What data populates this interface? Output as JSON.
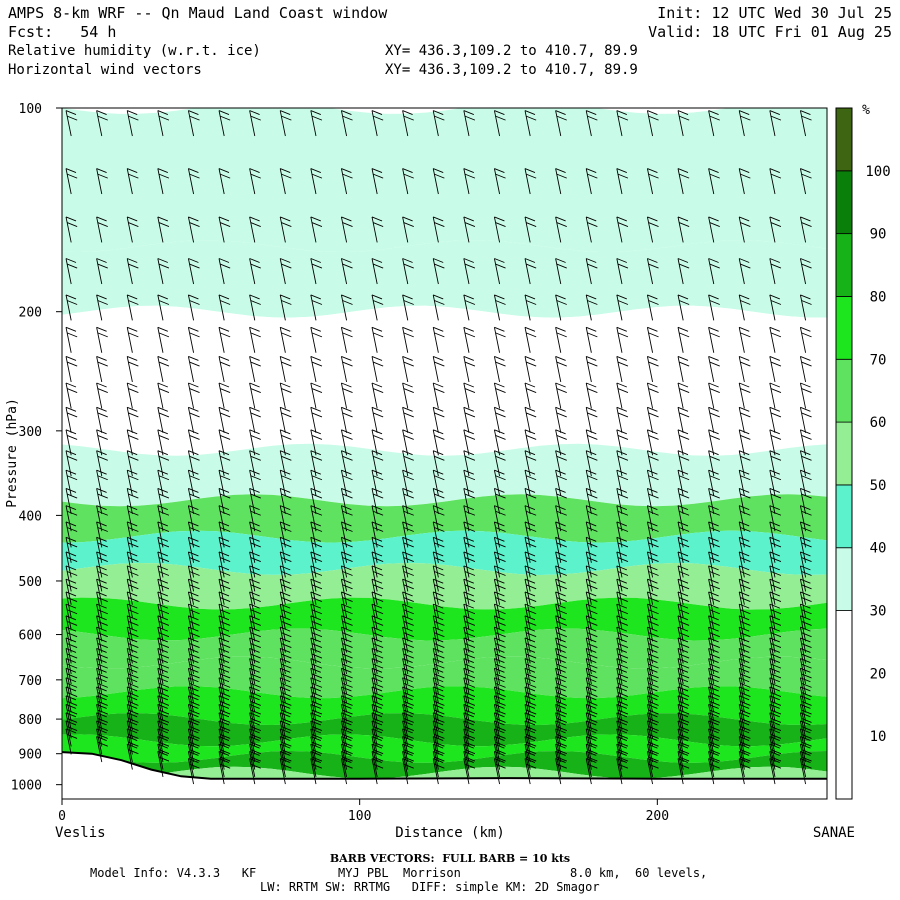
{
  "header": {
    "title": "AMPS 8-km WRF -- Qn Maud Land Coast window",
    "forecast_label": "Fcst:",
    "forecast_hours": "54 h",
    "variable_1": "Relative humidity (w.r.t. ice)",
    "variable_2": "Horizontal wind vectors",
    "xy_1": "XY= 436.3,109.2 to 410.7, 89.9",
    "xy_2": "XY= 436.3,109.2 to 410.7, 89.9",
    "init": "Init: 12 UTC Wed 30 Jul 25",
    "valid": "Valid: 18 UTC Fri 01 Aug 25"
  },
  "footer": {
    "barb_note": "BARB VECTORS:  FULL BARB = 10 kts",
    "model_info": "Model Info: V4.3.3   KF",
    "pbl_micro": "MYJ PBL  Morrison",
    "grid": "8.0 km,  60 levels,",
    "physics": "LW: RRTM SW: RRTMG   DIFF: simple KM: 2D Smagor"
  },
  "chart_data": {
    "type": "heatmap",
    "title": "Relative humidity (w.r.t. ice)",
    "xlabel": "Distance (km)",
    "ylabel": "Pressure (hPa)",
    "x_ticks": [
      0,
      100,
      200
    ],
    "y_ticks": [
      100,
      200,
      300,
      400,
      500,
      600,
      700,
      800,
      900,
      1000
    ],
    "xlim": [
      0,
      257
    ],
    "ylim": [
      1050,
      100
    ],
    "y_scale": "log",
    "left_endpoint": "Veslis",
    "right_endpoint": "SANAE",
    "colorbar_unit": "%",
    "colorbar_ticks": [
      10,
      20,
      30,
      40,
      50,
      60,
      70,
      80,
      90,
      100
    ],
    "color_levels": [
      {
        "min": 0,
        "max": 30,
        "color": "#ffffff"
      },
      {
        "min": 30,
        "max": 40,
        "color": "#c8fce8"
      },
      {
        "min": 40,
        "max": 50,
        "color": "#5cf2cc"
      },
      {
        "min": 50,
        "max": 60,
        "color": "#94ee94"
      },
      {
        "min": 60,
        "max": 70,
        "color": "#5fe25f"
      },
      {
        "min": 70,
        "max": 80,
        "color": "#1ee61e"
      },
      {
        "min": 80,
        "max": 90,
        "color": "#17b217"
      },
      {
        "min": 90,
        "max": 100,
        "color": "#0a800a"
      },
      {
        "min": 100,
        "max": 110,
        "color": "#3e6612"
      }
    ],
    "grid": false,
    "rh_layers": [
      {
        "p": 100,
        "rh": 35
      },
      {
        "p": 160,
        "rh": 33
      },
      {
        "p": 200,
        "rh": 20
      },
      {
        "p": 260,
        "rh": 22
      },
      {
        "p": 320,
        "rh": 38
      },
      {
        "p": 380,
        "rh": 62
      },
      {
        "p": 430,
        "rh": 46
      },
      {
        "p": 480,
        "rh": 55
      },
      {
        "p": 540,
        "rh": 78
      },
      {
        "p": 600,
        "rh": 68
      },
      {
        "p": 660,
        "rh": 62
      },
      {
        "p": 730,
        "rh": 72
      },
      {
        "p": 800,
        "rh": 80
      },
      {
        "p": 860,
        "rh": 74
      },
      {
        "p": 910,
        "rh": 85
      },
      {
        "p": 960,
        "rh": 52
      }
    ],
    "terrain": [
      {
        "x": 0,
        "p": 895
      },
      {
        "x": 10,
        "p": 900
      },
      {
        "x": 20,
        "p": 920
      },
      {
        "x": 30,
        "p": 950
      },
      {
        "x": 40,
        "p": 972
      },
      {
        "x": 50,
        "p": 980
      },
      {
        "x": 100,
        "p": 980
      },
      {
        "x": 150,
        "p": 978
      },
      {
        "x": 200,
        "p": 980
      },
      {
        "x": 257,
        "p": 980
      }
    ],
    "barb_speed_kts": 25
  }
}
